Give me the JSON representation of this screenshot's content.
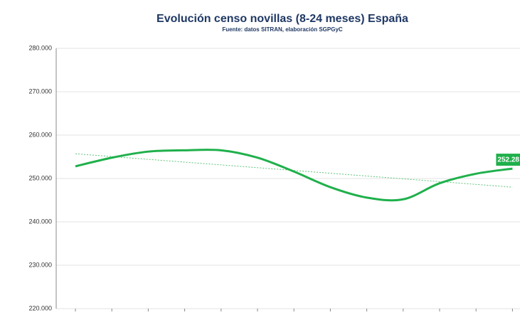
{
  "chart_data": {
    "type": "line",
    "title": "Evolución censo novillas (8-24 meses) España",
    "subtitle": "Fuente: datos SITRAN, elaboración SGPGyC",
    "categories": [
      null,
      null,
      null,
      null,
      null,
      null,
      null,
      null,
      null,
      null,
      null,
      null,
      null
    ],
    "series": [
      {
        "name": "Novillas 8-24 meses",
        "color": "#1fb04b",
        "values": [
          252800,
          254800,
          256200,
          256500,
          256500,
          254800,
          251600,
          248000,
          245600,
          245200,
          248900,
          251100,
          252280
        ],
        "value_labels": [
          null,
          null,
          null,
          null,
          null,
          null,
          null,
          null,
          null,
          null,
          null,
          null,
          "252.28"
        ]
      }
    ],
    "trend": {
      "color": "#5cc47a",
      "values": [
        255700,
        248000
      ]
    },
    "ylim": [
      220000,
      280000
    ],
    "yticks": [
      {
        "value": 220000,
        "label": "220.000"
      },
      {
        "value": 230000,
        "label": "230.000"
      },
      {
        "value": 240000,
        "label": "240.000"
      },
      {
        "value": 250000,
        "label": "250.000"
      },
      {
        "value": 260000,
        "label": "260.000"
      },
      {
        "value": 270000,
        "label": "270.000"
      },
      {
        "value": 280000,
        "label": "280.000"
      }
    ],
    "grid": true
  }
}
